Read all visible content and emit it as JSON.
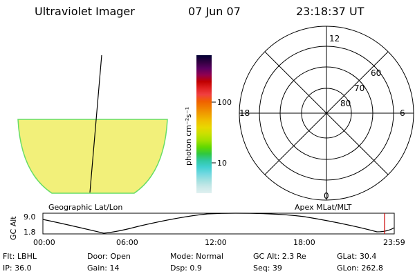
{
  "header": {
    "instrument": "Ultraviolet Imager",
    "date": "07 Jun 07",
    "time": "23:18:37 UT"
  },
  "image_panel": {
    "caption": "Geographic Lat/Lon",
    "fill_color": "#f2f07a",
    "edge_color": "#66dd66"
  },
  "colorbar": {
    "unit_label": "photon cm⁻²s⁻¹",
    "tick_labels": [
      "100",
      "10"
    ],
    "colors_top_to_bottom": [
      "#000033",
      "#300040",
      "#5a0060",
      "#900050",
      "#c00000",
      "#e02020",
      "#f04040",
      "#f06000",
      "#f08000",
      "#f0a000",
      "#f0c000",
      "#e8d800",
      "#c8e000",
      "#a0e000",
      "#60d800",
      "#30c840",
      "#30c8a0",
      "#40d0d0",
      "#70d8e0",
      "#a0e0e0",
      "#c8e8e8",
      "#e0f0f0"
    ]
  },
  "polar_plot": {
    "caption": "Apex MLat/MLT",
    "mlt_labels": [
      "12",
      "18",
      "6",
      "0"
    ],
    "lat_labels": [
      "60",
      "70",
      "80"
    ]
  },
  "timeline": {
    "axis_title": "GC Alt",
    "y_labels": [
      "9.0",
      "1.8"
    ],
    "x_labels": [
      "00:00",
      "06:00",
      "12:00",
      "18:00",
      "23:59"
    ],
    "marker_time": "23:18",
    "marker_color": "#cc0000"
  },
  "info": {
    "flt": "Flt: LBHL",
    "door": "Door: Open",
    "mode": "Mode: Normal",
    "gc_alt": "GC Alt: 2.3 Re",
    "glat": "GLat:  30.4",
    "ip": "IP: 36.0",
    "gain": "Gain: 14",
    "dsp": "Dsp:    0.9",
    "seq": "Seq: 39",
    "glon": "GLon: 262.8"
  }
}
